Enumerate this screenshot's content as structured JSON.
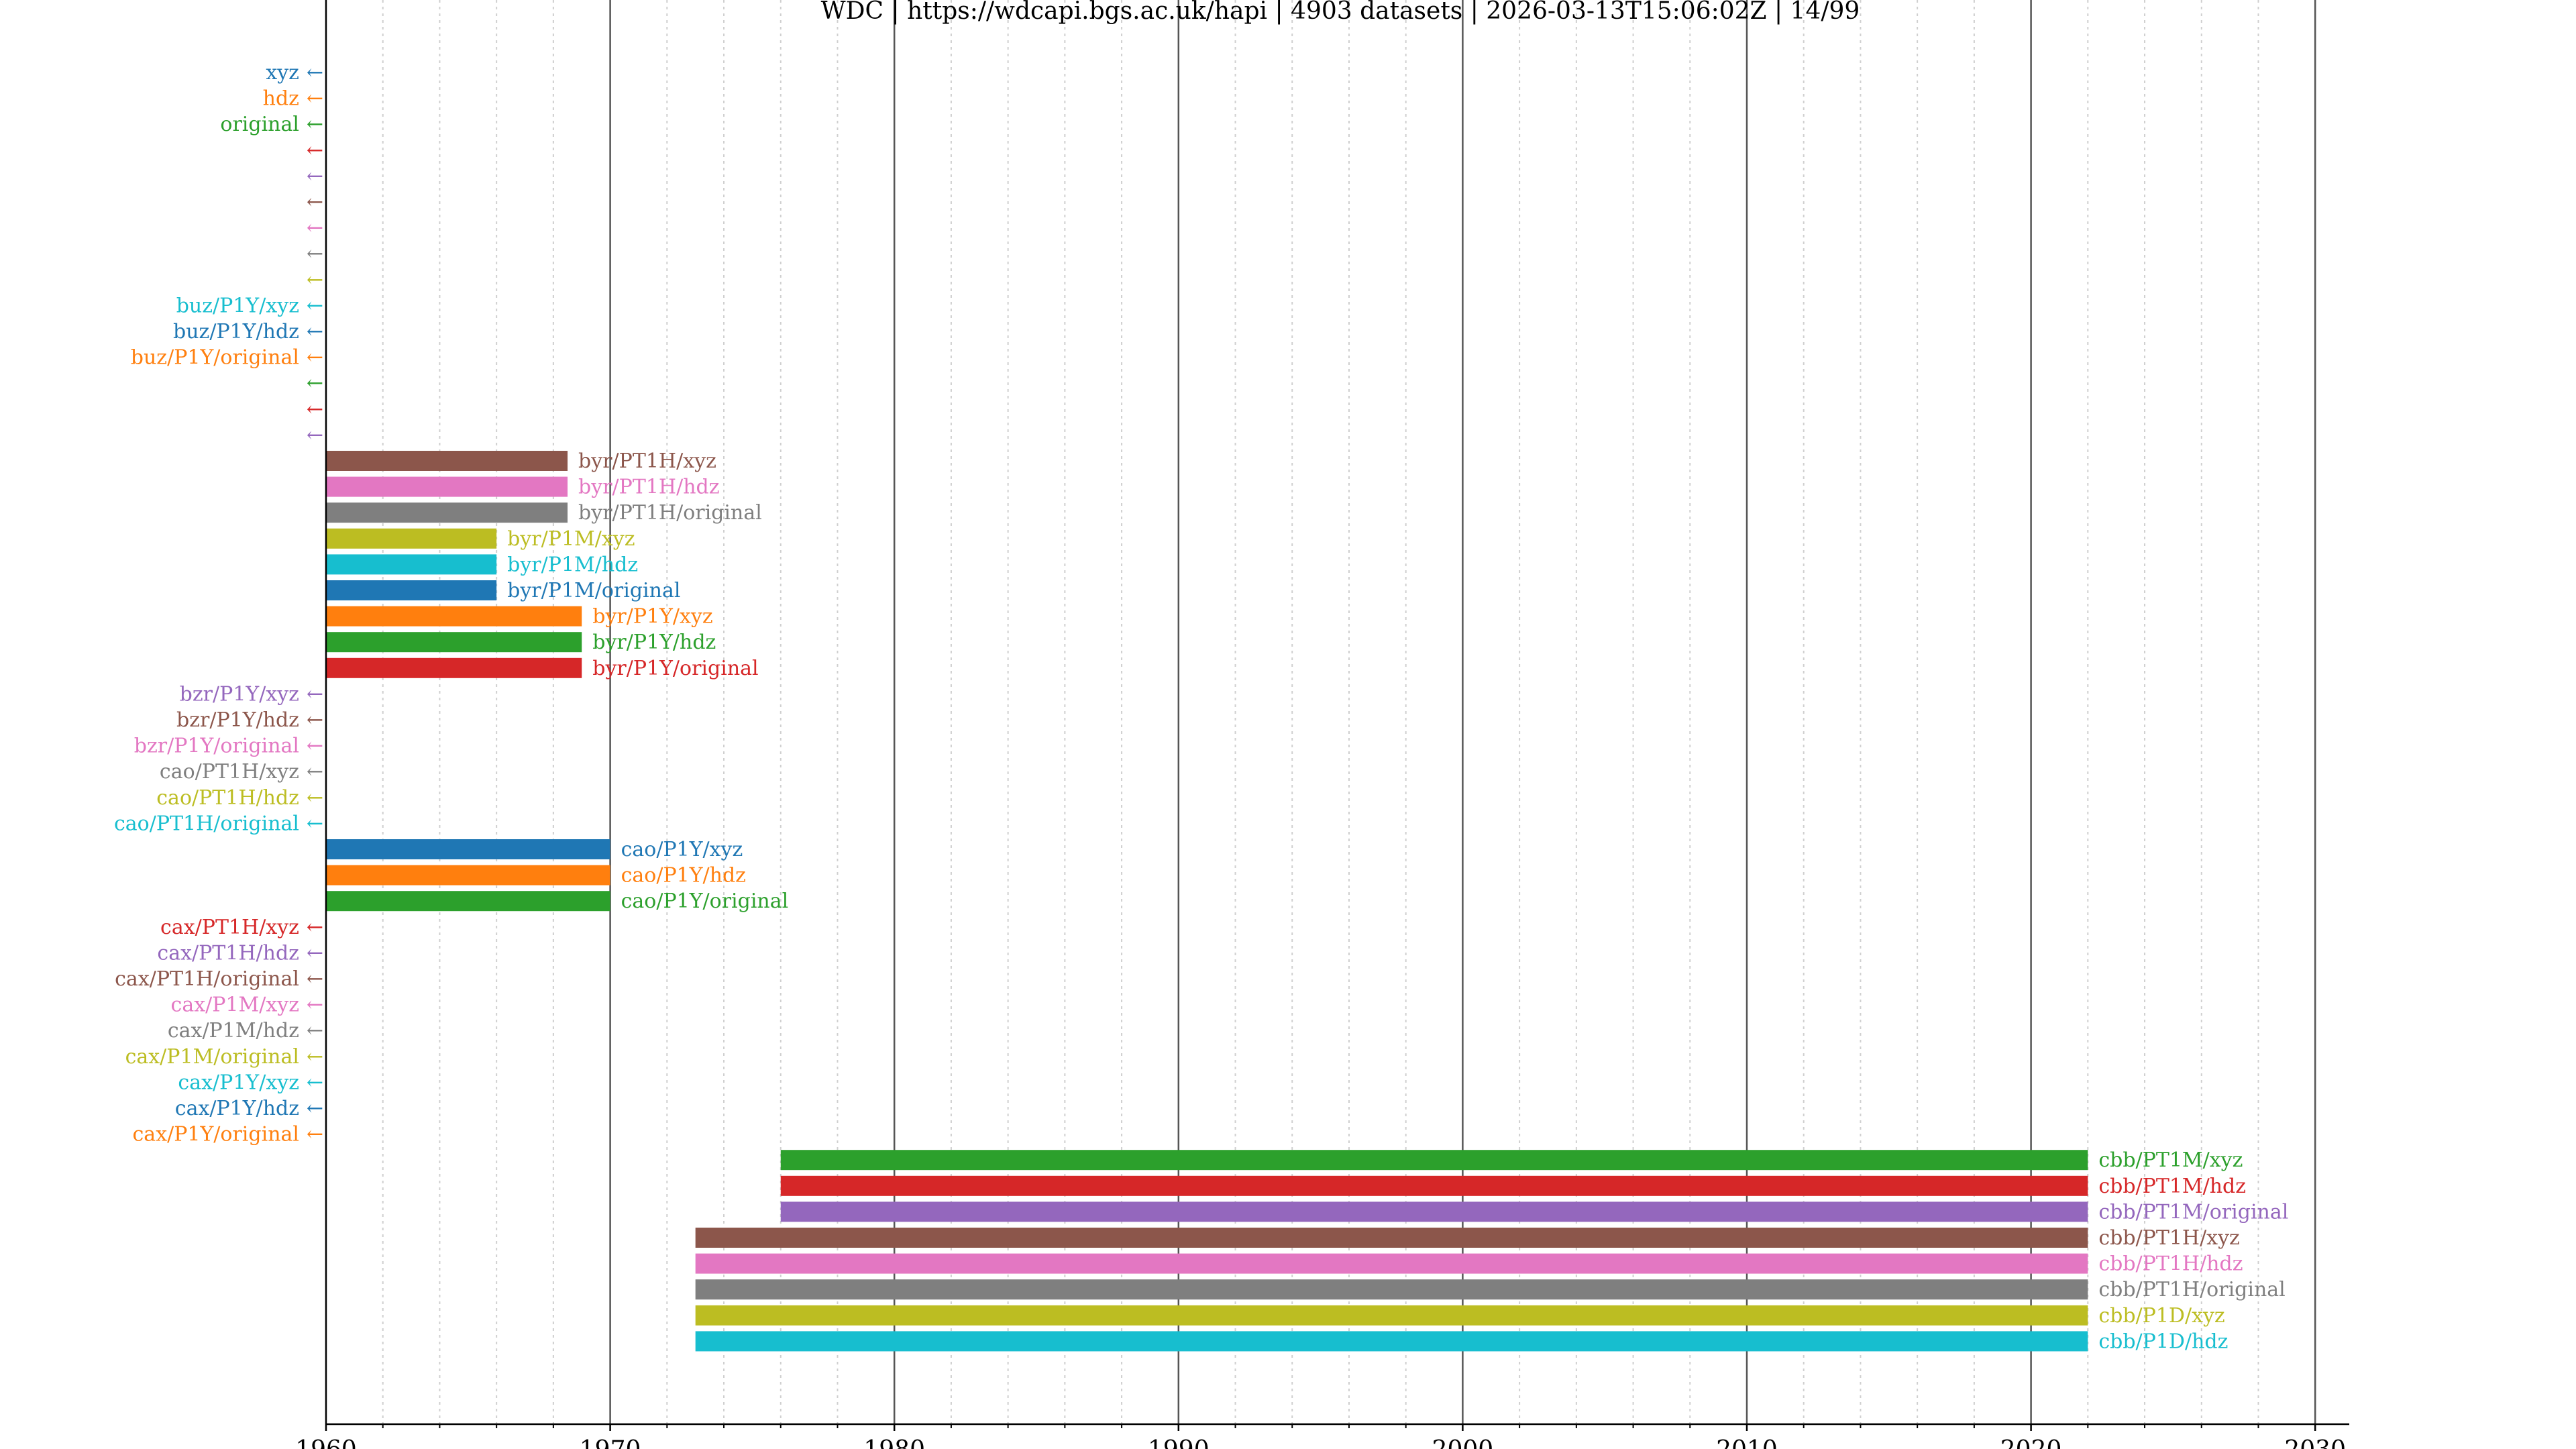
{
  "title": "WDC | https://wdcapi.bgs.ac.uk/hapi | 4903 datasets | 2026-03-13T15:06:02Z | 14/99",
  "chart_data": {
    "type": "bar",
    "orientation": "horizontal-timeline",
    "title": "WDC | https://wdcapi.bgs.ac.uk/hapi | 4903 datasets | 2026-03-13T15:06:02Z | 14/99",
    "xlabel": "",
    "ylabel": "",
    "xlim": [
      1960,
      2031.2
    ],
    "x_ticks": [
      "1960",
      "1970",
      "1980",
      "1990",
      "2000",
      "2010",
      "2020",
      "2030"
    ],
    "grid": {
      "major": "solid vertical lines every 10 years",
      "minor": "dotted vertical lines every 2 years"
    },
    "legend": "none",
    "off_axis_marker": "←",
    "series": [
      {
        "name": "xyz",
        "start": null,
        "stop": null,
        "color": "#1f77b4"
      },
      {
        "name": "hdz",
        "start": null,
        "stop": null,
        "color": "#ff7f0e"
      },
      {
        "name": "original",
        "start": null,
        "stop": null,
        "color": "#2ca02c"
      },
      {
        "name": "",
        "start": null,
        "stop": null,
        "color": "#d62728"
      },
      {
        "name": "",
        "start": null,
        "stop": null,
        "color": "#9467bd"
      },
      {
        "name": "",
        "start": null,
        "stop": null,
        "color": "#8c564b"
      },
      {
        "name": "",
        "start": null,
        "stop": null,
        "color": "#e377c2"
      },
      {
        "name": "",
        "start": null,
        "stop": null,
        "color": "#7f7f7f"
      },
      {
        "name": "",
        "start": null,
        "stop": null,
        "color": "#bcbd22"
      },
      {
        "name": "buz/P1Y/xyz",
        "start": null,
        "stop": null,
        "color": "#17becf"
      },
      {
        "name": "buz/P1Y/hdz",
        "start": null,
        "stop": null,
        "color": "#1f77b4"
      },
      {
        "name": "buz/P1Y/original",
        "start": null,
        "stop": null,
        "color": "#ff7f0e"
      },
      {
        "name": "",
        "start": null,
        "stop": null,
        "color": "#2ca02c"
      },
      {
        "name": "",
        "start": null,
        "stop": null,
        "color": "#d62728"
      },
      {
        "name": "",
        "start": null,
        "stop": null,
        "color": "#9467bd"
      },
      {
        "name": "byr/PT1H/xyz",
        "start": 1960.0,
        "stop": 1968.5,
        "color": "#8c564b"
      },
      {
        "name": "byr/PT1H/hdz",
        "start": 1960.0,
        "stop": 1968.5,
        "color": "#e377c2"
      },
      {
        "name": "byr/PT1H/original",
        "start": 1960.0,
        "stop": 1968.5,
        "color": "#7f7f7f"
      },
      {
        "name": "byr/P1M/xyz",
        "start": 1960.0,
        "stop": 1966.0,
        "color": "#bcbd22"
      },
      {
        "name": "byr/P1M/hdz",
        "start": 1960.0,
        "stop": 1966.0,
        "color": "#17becf"
      },
      {
        "name": "byr/P1M/original",
        "start": 1960.0,
        "stop": 1966.0,
        "color": "#1f77b4"
      },
      {
        "name": "byr/P1Y/xyz",
        "start": 1960.0,
        "stop": 1969.0,
        "color": "#ff7f0e"
      },
      {
        "name": "byr/P1Y/hdz",
        "start": 1960.0,
        "stop": 1969.0,
        "color": "#2ca02c"
      },
      {
        "name": "byr/P1Y/original",
        "start": 1960.0,
        "stop": 1969.0,
        "color": "#d62728"
      },
      {
        "name": "bzr/P1Y/xyz",
        "start": null,
        "stop": null,
        "color": "#9467bd"
      },
      {
        "name": "bzr/P1Y/hdz",
        "start": null,
        "stop": null,
        "color": "#8c564b"
      },
      {
        "name": "bzr/P1Y/original",
        "start": null,
        "stop": null,
        "color": "#e377c2"
      },
      {
        "name": "cao/PT1H/xyz",
        "start": null,
        "stop": null,
        "color": "#7f7f7f"
      },
      {
        "name": "cao/PT1H/hdz",
        "start": null,
        "stop": null,
        "color": "#bcbd22"
      },
      {
        "name": "cao/PT1H/original",
        "start": null,
        "stop": null,
        "color": "#17becf"
      },
      {
        "name": "cao/P1Y/xyz",
        "start": 1960.0,
        "stop": 1970.0,
        "color": "#1f77b4"
      },
      {
        "name": "cao/P1Y/hdz",
        "start": 1960.0,
        "stop": 1970.0,
        "color": "#ff7f0e"
      },
      {
        "name": "cao/P1Y/original",
        "start": 1960.0,
        "stop": 1970.0,
        "color": "#2ca02c"
      },
      {
        "name": "cax/PT1H/xyz",
        "start": null,
        "stop": null,
        "color": "#d62728"
      },
      {
        "name": "cax/PT1H/hdz",
        "start": null,
        "stop": null,
        "color": "#9467bd"
      },
      {
        "name": "cax/PT1H/original",
        "start": null,
        "stop": null,
        "color": "#8c564b"
      },
      {
        "name": "cax/P1M/xyz",
        "start": null,
        "stop": null,
        "color": "#e377c2"
      },
      {
        "name": "cax/P1M/hdz",
        "start": null,
        "stop": null,
        "color": "#7f7f7f"
      },
      {
        "name": "cax/P1M/original",
        "start": null,
        "stop": null,
        "color": "#bcbd22"
      },
      {
        "name": "cax/P1Y/xyz",
        "start": null,
        "stop": null,
        "color": "#17becf"
      },
      {
        "name": "cax/P1Y/hdz",
        "start": null,
        "stop": null,
        "color": "#1f77b4"
      },
      {
        "name": "cax/P1Y/original",
        "start": null,
        "stop": null,
        "color": "#ff7f0e"
      },
      {
        "name": "cbb/PT1M/xyz",
        "start": 1976.0,
        "stop": 2022.0,
        "color": "#2ca02c"
      },
      {
        "name": "cbb/PT1M/hdz",
        "start": 1976.0,
        "stop": 2022.0,
        "color": "#d62728"
      },
      {
        "name": "cbb/PT1M/original",
        "start": 1976.0,
        "stop": 2022.0,
        "color": "#9467bd"
      },
      {
        "name": "cbb/PT1H/xyz",
        "start": 1973.0,
        "stop": 2022.0,
        "color": "#8c564b"
      },
      {
        "name": "cbb/PT1H/hdz",
        "start": 1973.0,
        "stop": 2022.0,
        "color": "#e377c2"
      },
      {
        "name": "cbb/PT1H/original",
        "start": 1973.0,
        "stop": 2022.0,
        "color": "#7f7f7f"
      },
      {
        "name": "cbb/P1D/xyz",
        "start": 1973.0,
        "stop": 2022.0,
        "color": "#bcbd22"
      },
      {
        "name": "cbb/P1D/hdz",
        "start": 1973.0,
        "stop": 2022.0,
        "color": "#17becf"
      }
    ]
  }
}
